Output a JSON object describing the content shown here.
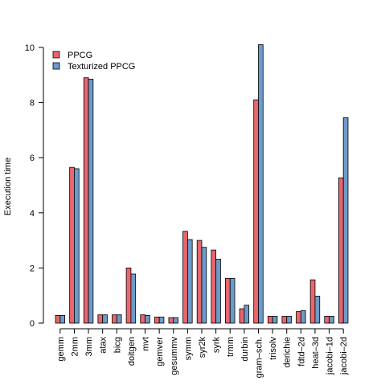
{
  "chart_data": {
    "type": "bar",
    "title": "",
    "xlabel": "",
    "ylabel": "Execution time",
    "ylim": [
      0,
      10
    ],
    "yticks": [
      0,
      2,
      4,
      6,
      8,
      10
    ],
    "grid": false,
    "legend_position": "top-left",
    "categories": [
      "gemm",
      "2mm",
      "3mm",
      "atax",
      "bicg",
      "doitgen",
      "mvt",
      "gemver",
      "gesummv",
      "symm",
      "syr2k",
      "syrk",
      "trmm",
      "durbin",
      "gram–sch.",
      "trisolv",
      "derichie",
      "fdtd–2d",
      "heat–3d",
      "jacobi–1d",
      "jacobi–2d"
    ],
    "series": [
      {
        "name": "PPCG",
        "color": "#E8666E",
        "values": [
          0.28,
          5.65,
          8.9,
          0.3,
          0.3,
          2.0,
          0.3,
          0.22,
          0.2,
          3.33,
          3.0,
          2.65,
          1.62,
          0.52,
          8.1,
          0.25,
          0.25,
          0.42,
          1.57,
          0.25,
          5.27
        ]
      },
      {
        "name": "Texturized PPCG",
        "color": "#6C9BC9",
        "values": [
          0.28,
          5.6,
          8.85,
          0.3,
          0.3,
          1.78,
          0.28,
          0.22,
          0.2,
          3.03,
          2.75,
          2.32,
          1.62,
          0.65,
          10.1,
          0.25,
          0.25,
          0.45,
          0.98,
          0.25,
          7.45
        ]
      }
    ]
  }
}
